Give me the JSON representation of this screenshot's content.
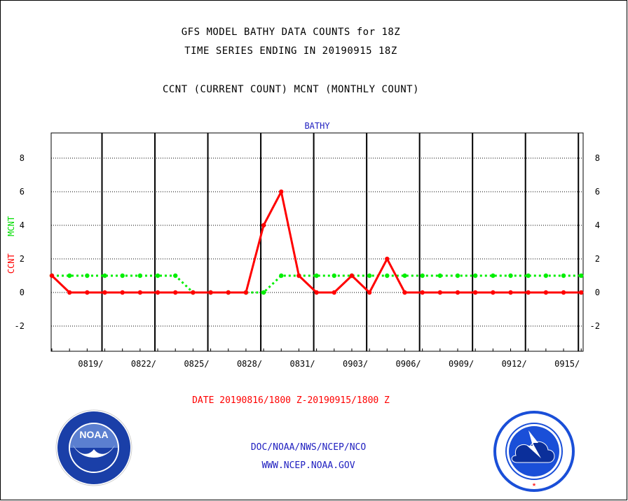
{
  "header": {
    "title_line1": "GFS MODEL BATHY DATA COUNTS for 18Z",
    "title_line2": "TIME SERIES ENDING IN 20190915 18Z",
    "subtitle": "CCNT (CURRENT COUNT) MCNT (MONTHLY COUNT)"
  },
  "ylabel": {
    "series1": "CCNT",
    "series2": "MCNT"
  },
  "footer": {
    "date_range": "DATE 20190816/1800 Z-20190915/1800 Z",
    "agency": "DOC/NOAA/NWS/NCEP/NCO",
    "website": "WWW.NCEP.NOAA.GOV"
  },
  "logos": {
    "left": "NOAA",
    "right": "NATIONAL WEATHER SERVICE"
  },
  "colors": {
    "ccnt": "#ff0000",
    "mcnt": "#00ee00",
    "panel_title": "#2020c0",
    "agency_text": "#2020c0",
    "date_text": "#ff0000",
    "noaa_blue": "#1a3fa8",
    "nws_blue": "#1a4fd8"
  },
  "chart_data": {
    "type": "line",
    "title": "BATHY",
    "xlabel": "",
    "ylabel": "CCNT  MCNT",
    "ylim": [
      -3.5,
      9.5
    ],
    "yticks": [
      -2,
      0,
      2,
      4,
      6,
      8
    ],
    "ytick_labels": [
      "-2",
      "0",
      "2",
      "4",
      "6",
      "8"
    ],
    "grid": "horizontal dotted at y ticks, vertical solid every 3 days",
    "x_start_day": 0,
    "x_end_day": 30,
    "x_ticks": [
      {
        "day": 3,
        "label": "0819/"
      },
      {
        "day": 6,
        "label": "0822/"
      },
      {
        "day": 9,
        "label": "0825/"
      },
      {
        "day": 12,
        "label": "0828/"
      },
      {
        "day": 15,
        "label": "0831/"
      },
      {
        "day": 18,
        "label": "0903/"
      },
      {
        "day": 21,
        "label": "0906/"
      },
      {
        "day": 24,
        "label": "0909/"
      },
      {
        "day": 27,
        "label": "0912/"
      },
      {
        "day": 30,
        "label": "0915/"
      }
    ],
    "x": [
      "0816",
      "0817",
      "0818",
      "0819",
      "0820",
      "0821",
      "0822",
      "0823",
      "0824",
      "0825",
      "0826",
      "0827",
      "0828",
      "0829",
      "0830",
      "0831",
      "0901",
      "0902",
      "0903",
      "0904",
      "0905",
      "0906",
      "0907",
      "0908",
      "0909",
      "0910",
      "0911",
      "0912",
      "0913",
      "0914",
      "0915"
    ],
    "series": [
      {
        "name": "CCNT",
        "color": "#ff0000",
        "style": "solid",
        "values": [
          1,
          0,
          0,
          0,
          0,
          0,
          0,
          0,
          0,
          0,
          0,
          0,
          4,
          6,
          1,
          0,
          0,
          1,
          0,
          2,
          0,
          0,
          0,
          0,
          0,
          0,
          0,
          0,
          0,
          0,
          0
        ]
      },
      {
        "name": "MCNT",
        "color": "#00ee00",
        "style": "dotted",
        "values": [
          1,
          1,
          1,
          1,
          1,
          1,
          1,
          1,
          0,
          0,
          0,
          0,
          0,
          1,
          1,
          1,
          1,
          1,
          1,
          1,
          1,
          1,
          1,
          1,
          1,
          1,
          1,
          1,
          1,
          1,
          1
        ]
      }
    ]
  }
}
